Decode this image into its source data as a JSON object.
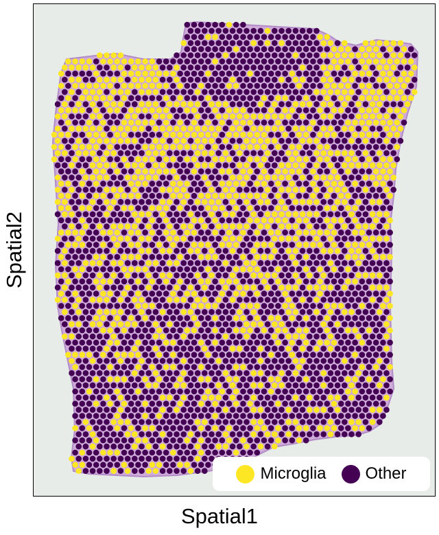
{
  "chart_data": {
    "type": "scatter",
    "subtype": "spatial-spot-map",
    "title": "",
    "xlabel": "Spatial1",
    "ylabel": "Spatial2",
    "grid": false,
    "background": "tissue-histology-image",
    "legend": {
      "placement": "bottom-right"
    },
    "categories": [
      {
        "name": "Microglia",
        "color": "#fde725"
      },
      {
        "name": "Other",
        "color": "#440154"
      }
    ],
    "tissue_color": "#c9a0d6",
    "spot_pattern": "hexagonal-grid",
    "microglia_fraction_upper_region": 0.7,
    "microglia_fraction_lower_region": 0.25
  }
}
